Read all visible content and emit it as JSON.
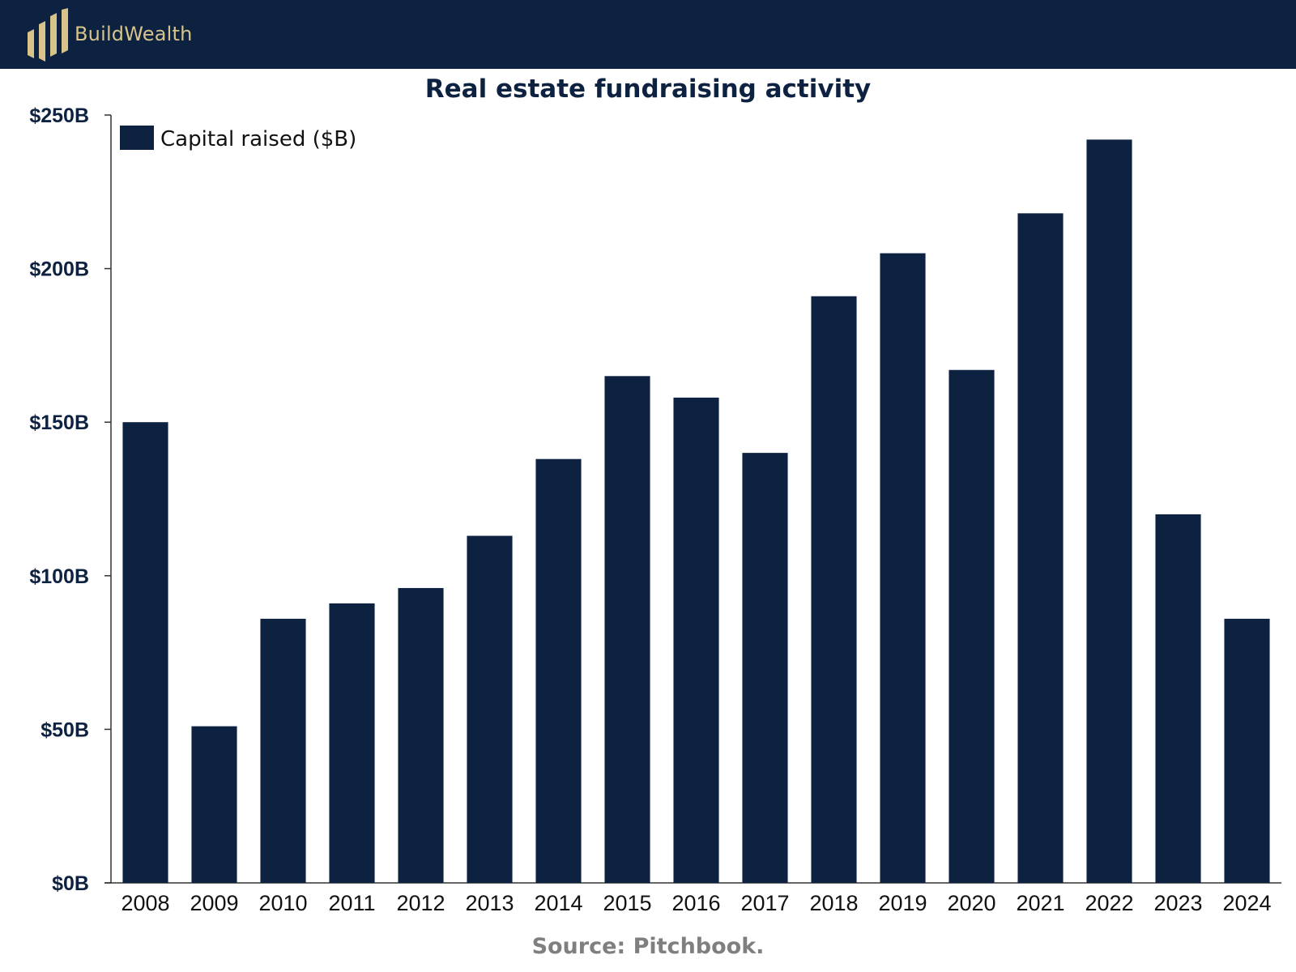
{
  "header": {
    "brand": "BuildWealth",
    "logo_icon": "bar-logo-icon",
    "background_color": "#0d2240",
    "brand_color": "#d8c38a"
  },
  "source": "Source: Pitchbook.",
  "chart_data": {
    "type": "bar",
    "title": "Real estate fundraising activity",
    "xlabel": "",
    "ylabel": "",
    "categories": [
      "2008",
      "2009",
      "2010",
      "2011",
      "2012",
      "2013",
      "2014",
      "2015",
      "2016",
      "2017",
      "2018",
      "2019",
      "2020",
      "2021",
      "2022",
      "2023",
      "2024"
    ],
    "series": [
      {
        "name": "Capital raised ($B)",
        "color": "#0d2240",
        "values": [
          150,
          51,
          86,
          91,
          96,
          113,
          138,
          165,
          158,
          140,
          191,
          205,
          167,
          218,
          242,
          120,
          86
        ]
      }
    ],
    "ylim": [
      0,
      250
    ],
    "yticks": [
      0,
      50,
      100,
      150,
      200,
      250
    ],
    "ytick_labels": [
      "$0B",
      "$50B",
      "$100B",
      "$150B",
      "$200B",
      "$250B"
    ],
    "grid": false,
    "legend_position": "top-left"
  }
}
